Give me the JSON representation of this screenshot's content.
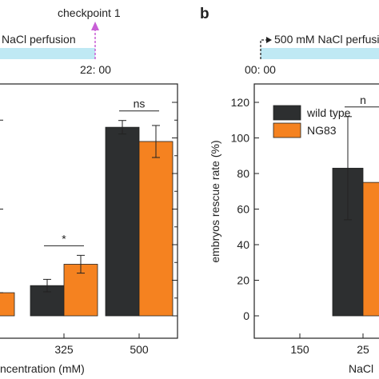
{
  "colors": {
    "wild_type": "#2d2f30",
    "ng83": "#f58220",
    "timeline_bar": "#bfe9f4",
    "checkpoint_arrow": "#c85fd6",
    "axis": "#222222"
  },
  "panel_a": {
    "timeline": {
      "label": "NaCl perfusion",
      "time": "22: 00",
      "checkpoint": "checkpoint 1"
    },
    "chart_data": {
      "type": "bar",
      "xlabel": "ncentration (mM)",
      "ylabel": "",
      "categories": [
        "325",
        "500"
      ],
      "ylim": [
        0,
        120
      ],
      "series": [
        {
          "name": "",
          "values": [
            17,
            106
          ],
          "errors": [
            3.5,
            3.8
          ],
          "color_key": "wild_type"
        },
        {
          "name": "",
          "values": [
            29,
            98
          ],
          "errors": [
            5,
            9
          ],
          "color_key": "ng83"
        }
      ],
      "left_partial_bar": {
        "value": 13,
        "color_key": "ng83"
      },
      "annotations": [
        {
          "category": "325",
          "text": "*"
        },
        {
          "category": "500",
          "text": "ns"
        }
      ]
    }
  },
  "panel_b": {
    "label": "b",
    "timeline": {
      "label": "500 mM NaCl perfusi",
      "time": "00: 00"
    },
    "chart_data": {
      "type": "bar",
      "xlabel": "NaCl",
      "ylabel": "embryos rescue rate (%)",
      "categories": [
        "150",
        "25"
      ],
      "ylim": [
        0,
        120
      ],
      "yticks": [
        0,
        20,
        40,
        60,
        80,
        100,
        120
      ],
      "series": [
        {
          "name": "wild type",
          "values": [
            0,
            83
          ],
          "errors": [
            0,
            29
          ],
          "color_key": "wild_type"
        },
        {
          "name": "NG83",
          "values": [
            0,
            75
          ],
          "errors": [
            0,
            0
          ],
          "color_key": "ng83"
        }
      ],
      "legend": "top-left",
      "annotations": [
        {
          "category": "25",
          "text": "n"
        }
      ]
    }
  }
}
